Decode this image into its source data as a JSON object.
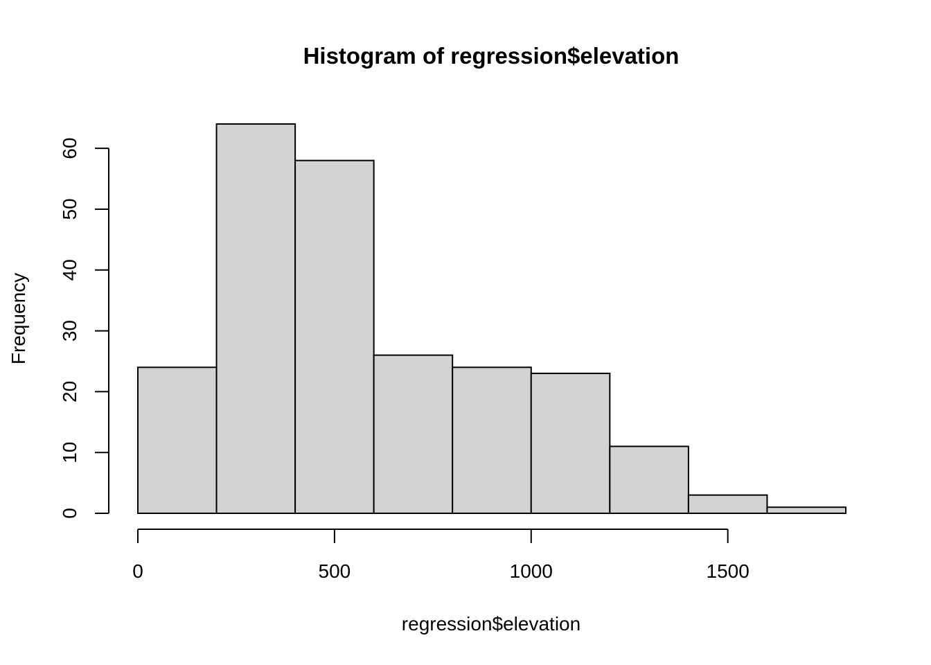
{
  "chart_data": {
    "type": "bar",
    "title": "Histogram of regression$elevation",
    "xlabel": "regression$elevation",
    "ylabel": "Frequency",
    "bins": [
      {
        "from": 0,
        "to": 200,
        "count": 24
      },
      {
        "from": 200,
        "to": 400,
        "count": 64
      },
      {
        "from": 400,
        "to": 600,
        "count": 58
      },
      {
        "from": 600,
        "to": 800,
        "count": 26
      },
      {
        "from": 800,
        "to": 1000,
        "count": 24
      },
      {
        "from": 1000,
        "to": 1200,
        "count": 23
      },
      {
        "from": 1200,
        "to": 1400,
        "count": 11
      },
      {
        "from": 1400,
        "to": 1600,
        "count": 3
      },
      {
        "from": 1600,
        "to": 1800,
        "count": 1
      }
    ],
    "xlim": [
      0,
      1800
    ],
    "ylim": [
      0,
      64
    ],
    "x_ticks": [
      0,
      500,
      1000,
      1500
    ],
    "x_tick_labels": [
      "0",
      "500",
      "1000",
      "1500"
    ],
    "y_ticks": [
      0,
      10,
      20,
      30,
      40,
      50,
      60
    ],
    "y_tick_labels": [
      "0",
      "10",
      "20",
      "30",
      "40",
      "50",
      "60"
    ],
    "bar_color": "#d3d3d3",
    "edge_color": "#000000",
    "grid": false
  }
}
